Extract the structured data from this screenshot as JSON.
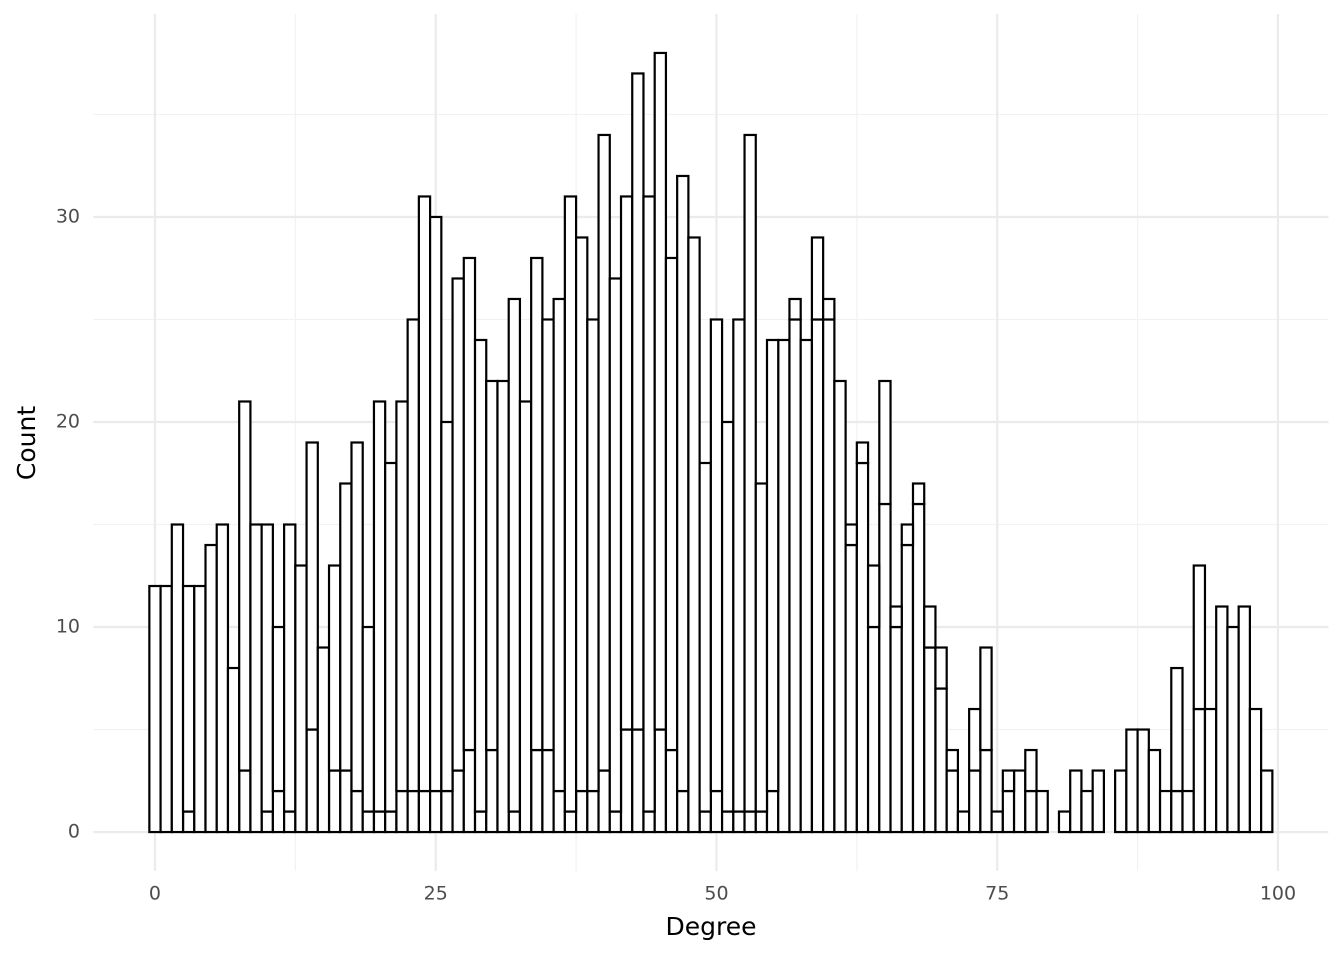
{
  "chart_data": {
    "type": "histogram",
    "x_label": "Degree",
    "y_label": "Count",
    "bins": [
      -0.5,
      0.5,
      1.5,
      2.5,
      3.5,
      4.5,
      5.5,
      6.5,
      7.5,
      8.5,
      9.5,
      10.5,
      11.5,
      12.5,
      13.5,
      14.5,
      15.5,
      16.5,
      17.5,
      18.5,
      19.5,
      20.5,
      21.5,
      22.5,
      23.5,
      24.5,
      25.5,
      26.5,
      27.5,
      28.5,
      29.5,
      30.5,
      31.5,
      32.5,
      33.5,
      34.5,
      35.5,
      36.5,
      37.5,
      38.5,
      39.5,
      40.5,
      41.5,
      42.5,
      43.5,
      44.5,
      45.5,
      46.5,
      47.5,
      48.5,
      49.5,
      50.5,
      51.5,
      52.5,
      53.5,
      54.5,
      55.5,
      56.5,
      57.5,
      58.5,
      59.5,
      60.5,
      61.5,
      62.5,
      63.5,
      64.5,
      65.5,
      66.5,
      67.5,
      68.5,
      69.5,
      70.5,
      71.5,
      72.5,
      73.5,
      74.5,
      75.5,
      76.5,
      77.5,
      78.5,
      79.5,
      80.5,
      81.5,
      82.5,
      83.5,
      84.5,
      85.5,
      86.5,
      87.5,
      88.5,
      89.5,
      90.5,
      91.5,
      92.5,
      93.5,
      94.5,
      95.5,
      96.5,
      97.5,
      98.5,
      99.5
    ],
    "series": [
      {
        "color": "#ffffff",
        "values": [
          0,
          0,
          0,
          1,
          0,
          0,
          0,
          0,
          3,
          0,
          1,
          2,
          1,
          0,
          5,
          0,
          3,
          3,
          2,
          1,
          1,
          1,
          2,
          2,
          2,
          2,
          2,
          3,
          4,
          1,
          4,
          0,
          1,
          0,
          4,
          4,
          2,
          1,
          2,
          2,
          3,
          1,
          5,
          5,
          1,
          5,
          4,
          2,
          0,
          1,
          2,
          1,
          1,
          1,
          1,
          2,
          24,
          25,
          24,
          25,
          25,
          22,
          14,
          18,
          10,
          16,
          10,
          14,
          16,
          9,
          7,
          3,
          1,
          3,
          4,
          1,
          2,
          3,
          2,
          2,
          0,
          1,
          3,
          2,
          3,
          0,
          3,
          5,
          5,
          4,
          2,
          2,
          2,
          6,
          6,
          11,
          10,
          11,
          6,
          3
        ]
      },
      {
        "color": "#ffffff",
        "values": [
          12,
          12,
          15,
          11,
          12,
          14,
          15,
          8,
          18,
          15,
          14,
          8,
          14,
          13,
          14,
          9,
          10,
          14,
          17,
          9,
          20,
          17,
          19,
          23,
          29,
          28,
          18,
          24,
          24,
          23,
          18,
          22,
          25,
          21,
          24,
          21,
          24,
          30,
          27,
          23,
          31,
          26,
          26,
          32,
          30,
          33,
          24,
          30,
          29,
          17,
          23,
          19,
          24,
          33,
          16,
          22,
          0,
          1,
          0,
          4,
          1,
          0,
          1,
          1,
          3,
          6,
          1,
          1,
          1,
          2,
          2,
          1,
          0,
          3,
          5,
          0,
          1,
          0,
          2,
          0,
          0,
          0,
          0,
          0,
          0,
          0,
          0,
          0,
          0,
          0,
          0,
          6,
          0,
          7,
          0,
          0,
          0,
          0,
          0,
          0
        ]
      }
    ],
    "xlim": [
      -5.5,
      104.5
    ],
    "xticks": [
      0,
      25,
      50,
      75,
      100
    ],
    "ylim": [
      -1.9,
      39.9
    ],
    "yticks": [
      0,
      10,
      20,
      30
    ],
    "grid": true
  }
}
